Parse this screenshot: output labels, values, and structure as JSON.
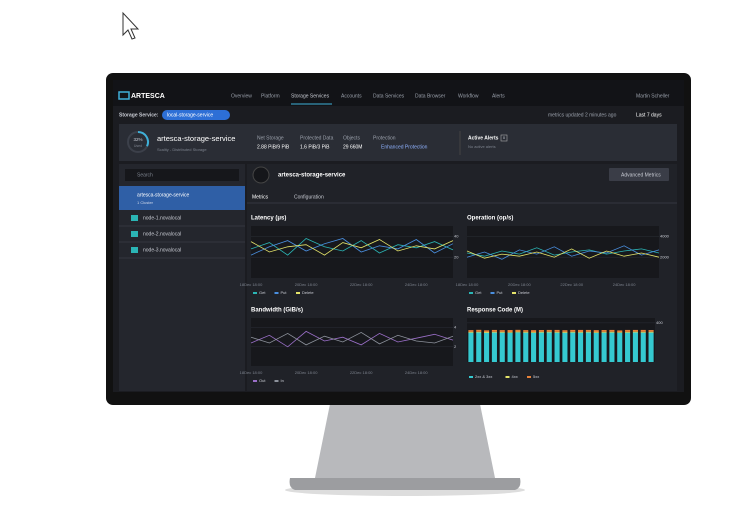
{
  "header": {
    "logo": "ARTESCA",
    "nav": [
      "Overview",
      "Platform",
      "Storage Services",
      "Accounts",
      "Data Services",
      "Data Browser",
      "Workflow",
      "Alerts"
    ],
    "user": "Martin Scheller"
  },
  "toolbar": {
    "service_label": "Storage Service:",
    "service": "local-storage-service",
    "updated": "metrics updated 2 minutes ago",
    "range": "Last 7 days"
  },
  "summary": {
    "used": {
      "value": 32,
      "label": "32%"
    },
    "used_label": "Used",
    "name": "artesca-storage-service",
    "subtitle": "Scality - Distributed Storage",
    "stats": [
      {
        "label": "Net Storage",
        "value": "2.88 PiB/9 PiB"
      },
      {
        "label": "Protected Data",
        "value": "1.6 PiB/3 PiB"
      },
      {
        "label": "Objects",
        "value": "29 660M"
      }
    ],
    "protection_label": "Protection",
    "protection": "Enhanced Protection",
    "alerts_label": "Active Alerts",
    "alerts_count": "0",
    "alerts": "No active alerts"
  },
  "sidebar": {
    "search": "Search",
    "item": {
      "title": "artesca-storage-service",
      "subtitle": "1 Cluster"
    },
    "nodes": [
      "node-1.novalocal",
      "node-2.novalocal",
      "node-3.novalocal"
    ]
  },
  "detail": {
    "title": "artesca-storage-service",
    "button": "Advanced Metrics",
    "tabs": [
      "Metrics",
      "Configuration"
    ]
  },
  "charts": [
    {
      "type": "line",
      "title": "Latency (μs)",
      "categories": [
        "18Dec 18:00",
        null,
        null,
        "20Dec 18:00",
        null,
        null,
        "22Dec 18:00",
        null,
        null,
        "24Dec 18:00",
        null,
        null
      ],
      "ylim": [
        0,
        50
      ],
      "yticks": [
        20,
        40
      ],
      "series": [
        {
          "name": "Get",
          "color": "#2bb5b5",
          "values": [
            28,
            34,
            22,
            38,
            30,
            26,
            36,
            24,
            32,
            29,
            35,
            27
          ]
        },
        {
          "name": "Put",
          "color": "#4a8fdf",
          "values": [
            22,
            30,
            36,
            26,
            33,
            38,
            25,
            31,
            28,
            37,
            24,
            33
          ]
        },
        {
          "name": "Delete",
          "color": "#e4e36a",
          "values": [
            35,
            25,
            30,
            32,
            22,
            34,
            29,
            37,
            26,
            31,
            28,
            36
          ]
        }
      ]
    },
    {
      "type": "line",
      "title": "Operation (op/s)",
      "categories": [
        "18Dec 18:00",
        null,
        null,
        "20Dec 18:00",
        null,
        null,
        "22Dec 18:00",
        null,
        null,
        "24Dec 18:00",
        null,
        null
      ],
      "ylim": [
        0,
        5000
      ],
      "yticks": [
        2000,
        4000
      ],
      "series": [
        {
          "name": "Get",
          "color": "#2bb5b5",
          "values": [
            2400,
            2100,
            2600,
            2300,
            2900,
            2200,
            2500,
            2700,
            2300,
            2600,
            2800,
            2400
          ]
        },
        {
          "name": "Put",
          "color": "#4a8fdf",
          "values": [
            2000,
            2500,
            1800,
            2700,
            2300,
            3000,
            2100,
            2600,
            2400,
            3100,
            2200,
            2700
          ]
        },
        {
          "name": "Delete",
          "color": "#e4e36a",
          "values": [
            2600,
            1900,
            2300,
            2100,
            2500,
            2000,
            2800,
            1900,
            2600,
            2100,
            2400,
            2000
          ]
        }
      ]
    },
    {
      "type": "line",
      "title": "Bandwidth (GiB/s)",
      "categories": [
        "18Dec 18:00",
        null,
        null,
        "20Dec 18:00",
        null,
        null,
        "22Dec 18:00",
        null,
        null,
        "24Dec 18:00",
        null,
        null
      ],
      "ylim": [
        0,
        5
      ],
      "yticks": [
        2,
        4
      ],
      "series": [
        {
          "name": "Out",
          "color": "#9b6fc9",
          "values": [
            2.4,
            3.2,
            2.0,
            3.6,
            2.6,
            3.0,
            2.2,
            3.4,
            2.5,
            2.9,
            3.3,
            2.7
          ]
        },
        {
          "name": "In",
          "color": "#8d929c",
          "values": [
            3.0,
            2.4,
            3.4,
            2.2,
            3.1,
            2.5,
            3.5,
            2.3,
            3.2,
            2.6,
            2.4,
            3.1
          ]
        }
      ]
    },
    {
      "type": "bar",
      "title": "Response Code (M)",
      "categories": [
        null,
        null,
        null,
        null,
        null,
        null,
        null,
        null,
        null,
        null,
        null,
        null,
        null,
        null,
        null,
        null,
        null,
        null,
        null,
        null,
        null,
        null,
        null,
        null
      ],
      "ylim": [
        0,
        450
      ],
      "yticks": [
        400
      ],
      "series": [
        {
          "name": "2xx & 3xx",
          "color": "#35c9d0",
          "values": [
            300,
            302,
            298,
            301,
            300,
            299,
            303,
            300,
            298,
            301,
            302,
            300,
            299,
            301,
            300,
            302,
            298,
            300,
            301,
            299,
            300,
            302,
            300,
            301
          ]
        },
        {
          "name": "4xx",
          "color": "#e4e36a",
          "values": [
            8,
            7,
            9,
            8,
            8,
            7,
            8,
            9,
            8,
            7,
            8,
            8,
            9,
            8,
            7,
            8,
            8,
            9,
            8,
            7,
            8,
            8,
            9,
            8
          ]
        },
        {
          "name": "5xx",
          "color": "#e8823a",
          "values": [
            18,
            20,
            17,
            19,
            18,
            21,
            18,
            17,
            20,
            19,
            18,
            20,
            17,
            19,
            21,
            18,
            20,
            18,
            19,
            17,
            20,
            18,
            19,
            18
          ]
        }
      ]
    }
  ]
}
